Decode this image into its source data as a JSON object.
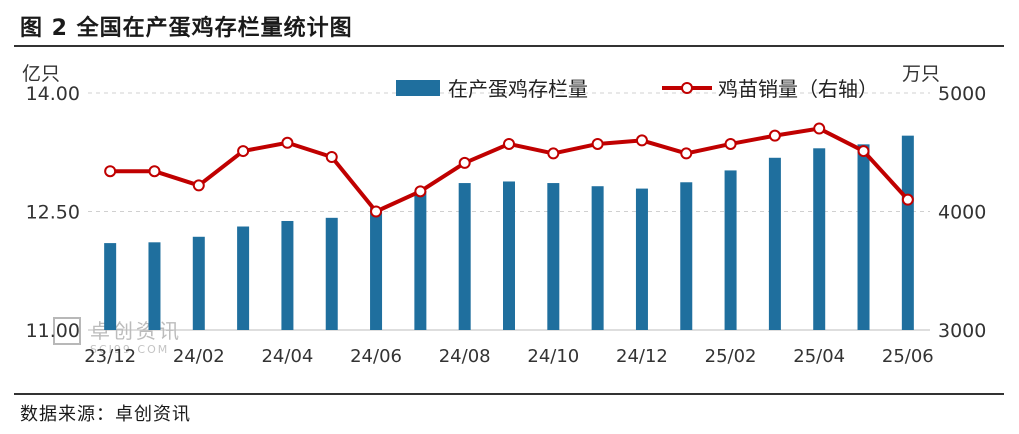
{
  "header": {
    "title": "图 2  全国在产蛋鸡存栏量统计图"
  },
  "footer": {
    "source": "数据来源：卓创资讯"
  },
  "watermark": {
    "text": "卓创资讯",
    "subtext": "SCI99.COM"
  },
  "colors": {
    "bar": "#1f6f9e",
    "line": "#c00000",
    "marker_fill": "#ffffff",
    "grid": "#d0d0d0"
  },
  "chart_data": {
    "type": "bar",
    "title": "",
    "categories": [
      "23/12",
      "24/01",
      "24/02",
      "24/03",
      "24/04",
      "24/05",
      "24/06",
      "24/07",
      "24/08",
      "24/09",
      "24/10",
      "24/11",
      "24/12",
      "25/01",
      "25/02",
      "25/03",
      "25/04",
      "25/05",
      "25/06"
    ],
    "x_tick_labels": [
      "23/12",
      "24/02",
      "24/04",
      "24/06",
      "24/08",
      "24/10",
      "24/12",
      "25/02",
      "25/04",
      "25/06"
    ],
    "left_axis": {
      "unit": "亿只",
      "ylim": [
        11.0,
        14.0
      ],
      "ticks": [
        "11.00",
        "12.50",
        "14.00"
      ]
    },
    "right_axis": {
      "unit": "万只",
      "ylim": [
        3000,
        5000
      ],
      "ticks": [
        "3000",
        "4000",
        "5000"
      ]
    },
    "series": [
      {
        "name": "在产蛋鸡存栏量",
        "type": "bar",
        "axis": "left",
        "values": [
          12.1,
          12.11,
          12.18,
          12.31,
          12.38,
          12.42,
          12.55,
          12.76,
          12.86,
          12.88,
          12.86,
          12.82,
          12.79,
          12.87,
          13.02,
          13.18,
          13.3,
          13.35,
          13.46
        ]
      },
      {
        "name": "鸡苗销量（右轴）",
        "type": "line",
        "axis": "right",
        "values": [
          4340,
          4340,
          4220,
          4510,
          4580,
          4460,
          4000,
          4170,
          4410,
          4570,
          4490,
          4570,
          4600,
          4490,
          4570,
          4640,
          4700,
          4510,
          4100
        ]
      }
    ],
    "grid": true,
    "legend_position": "top-center"
  }
}
